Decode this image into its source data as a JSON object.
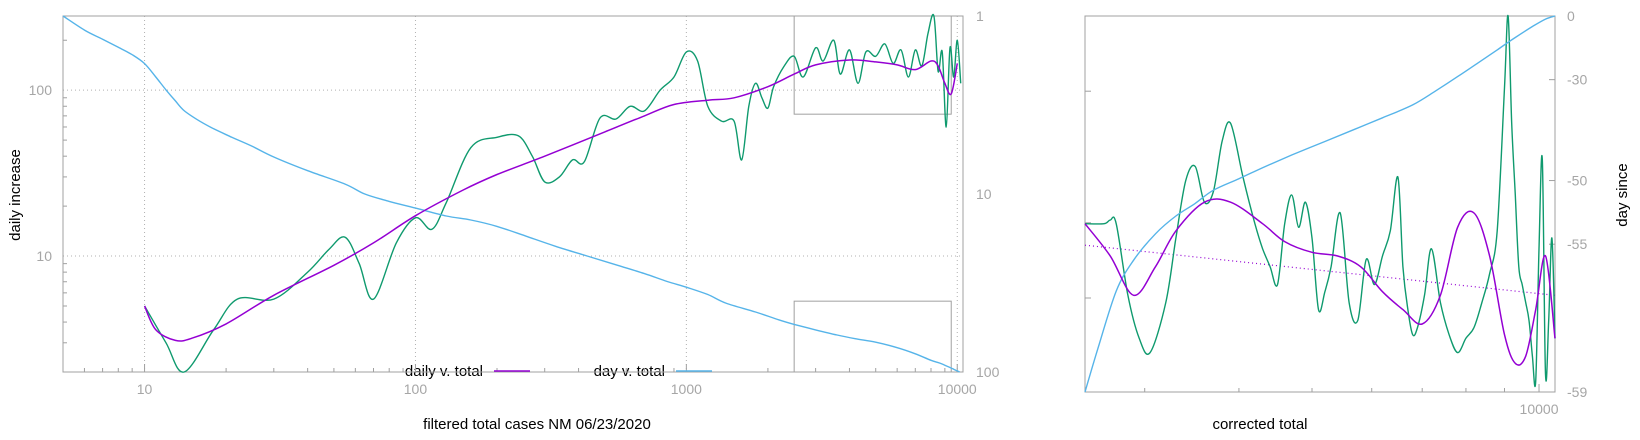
{
  "colors": {
    "daily_raw": "#0f9a6e",
    "daily_smooth": "#9400d3",
    "day_line": "#56b4e9",
    "grid": "#b0b0b0",
    "frame": "#a0a0a0",
    "tick_text": "#a6a6a6"
  },
  "chart_data": [
    {
      "type": "line",
      "xlabel": "filtered total cases NM 06/23/2020",
      "ylabel": "daily increase",
      "y2label": "",
      "x_scale": "log",
      "y_scale": "log",
      "xlim": [
        5,
        10500
      ],
      "ylim": [
        2,
        280
      ],
      "y2lim": [
        1,
        100
      ],
      "y2_scale": "log",
      "y2_reversed": true,
      "grid": true,
      "legend_position": "bottom-center",
      "x_ticks": [
        "10",
        "100",
        "1000",
        "10000"
      ],
      "y_ticks": [
        "10",
        "100"
      ],
      "y2_ticks": [
        "1",
        "10",
        "100"
      ],
      "series": [
        {
          "name": "daily v. total",
          "style": "smooth",
          "x": [
            10,
            11,
            13,
            15,
            20,
            30,
            50,
            70,
            100,
            150,
            200,
            300,
            500,
            700,
            900,
            1200,
            1500,
            2000,
            2500,
            3000,
            4000,
            5000,
            6000,
            7000,
            8000,
            8500,
            9000,
            9500,
            10000
          ],
          "y": [
            5.0,
            3.6,
            3.1,
            3.2,
            3.9,
            5.8,
            8.8,
            12.0,
            17.5,
            25.0,
            31.0,
            40.0,
            56.0,
            70.0,
            82.0,
            87.0,
            90.0,
            105.0,
            125.0,
            142.0,
            152.0,
            148.0,
            142.0,
            133.0,
            150.0,
            140.0,
            110.0,
            95.0,
            145.0
          ]
        },
        {
          "name": "",
          "style": "raw",
          "x": [
            10,
            12,
            14,
            18,
            22,
            30,
            40,
            48,
            55,
            62,
            70,
            85,
            100,
            115,
            130,
            160,
            200,
            240,
            270,
            300,
            340,
            380,
            420,
            480,
            550,
            620,
            700,
            800,
            900,
            1000,
            1100,
            1200,
            1350,
            1500,
            1600,
            1700,
            1800,
            1900,
            2000,
            2100,
            2300,
            2500,
            2700,
            3000,
            3200,
            3500,
            3700,
            4000,
            4300,
            4600,
            5000,
            5400,
            5800,
            6200,
            6600,
            7000,
            7400,
            7800,
            8200,
            8500,
            8800,
            9100,
            9400,
            9700,
            10000,
            10300
          ],
          "y": [
            5.0,
            3.0,
            2.0,
            3.6,
            5.5,
            5.5,
            8.0,
            11.0,
            13.0,
            9.0,
            5.5,
            12.0,
            17.0,
            14.5,
            21.0,
            45.0,
            52.0,
            53.0,
            40.0,
            28.0,
            30.0,
            38.0,
            37.0,
            68.0,
            67.0,
            80.0,
            75.0,
            100.0,
            120.0,
            170.0,
            150.0,
            80.0,
            65.0,
            65.0,
            38.0,
            80.0,
            110.0,
            90.0,
            78.0,
            105.0,
            140.0,
            160.0,
            120.0,
            180.0,
            150.0,
            200.0,
            125.0,
            175.0,
            110.0,
            170.0,
            160.0,
            190.0,
            145.0,
            175.0,
            120.0,
            175.0,
            140.0,
            220.0,
            280.0,
            130.0,
            170.0,
            60.0,
            180.0,
            120.0,
            200.0,
            110.0
          ]
        },
        {
          "name": "day v. total",
          "axis": "y2",
          "x": [
            5,
            6,
            7,
            8,
            9,
            10,
            11,
            12,
            13,
            14,
            16,
            18,
            21,
            25,
            30,
            40,
            55,
            65,
            80,
            100,
            130,
            160,
            200,
            260,
            330,
            430,
            550,
            700,
            850,
            1000,
            1200,
            1400,
            1800,
            2200,
            2500,
            3000,
            3600,
            4200,
            5000,
            6000,
            7000,
            8000,
            8600,
            9200,
            9700,
            10200
          ],
          "y": [
            1,
            1.2,
            1.35,
            1.5,
            1.65,
            1.85,
            2.2,
            2.6,
            3.0,
            3.4,
            3.9,
            4.3,
            4.8,
            5.4,
            6.2,
            7.4,
            8.8,
            10.0,
            11.0,
            12.0,
            13.3,
            14.0,
            15.2,
            17.4,
            19.7,
            22.3,
            25.0,
            28.0,
            31.0,
            33.4,
            36.7,
            41.0,
            46.0,
            51.0,
            54.0,
            58.0,
            62.0,
            65.0,
            68.0,
            73.0,
            79.0,
            86.0,
            89.0,
            93.0,
            96.5,
            100.0
          ]
        }
      ]
    },
    {
      "type": "line",
      "xlabel": "corrected total",
      "ylabel": "day since",
      "x_scale": "log",
      "xlim": [
        2500,
        10500
      ],
      "y2lim": [
        -59,
        0
      ],
      "y2_scale": "log-reversed",
      "grid": false,
      "x_ticks": [
        "10000"
      ],
      "y2_ticks": [
        "0",
        "-30",
        "-50",
        "-55",
        "-59"
      ],
      "series": [
        {
          "name": "daily v. total",
          "style": "smooth",
          "x": [
            2500,
            2700,
            2900,
            3100,
            3300,
            3600,
            3900,
            4300,
            4600,
            5000,
            5400,
            5800,
            6200,
            6600,
            7000,
            7400,
            7800,
            8200,
            8600,
            9000,
            9300,
            9600,
            9900,
            10200,
            10500
          ],
          "y": [
            132,
            123,
            112,
            120,
            130,
            138,
            138,
            132,
            127,
            124,
            123,
            120,
            113,
            108,
            104,
            112,
            131,
            135,
            123,
            101,
            93,
            95,
            108,
            123,
            100
          ]
        },
        {
          "name": "",
          "style": "raw",
          "x": [
            2500,
            2650,
            2700,
            2750,
            2850,
            2950,
            3050,
            3200,
            3300,
            3400,
            3500,
            3600,
            3700,
            3800,
            3900,
            4050,
            4200,
            4300,
            4400,
            4500,
            4600,
            4700,
            4800,
            4900,
            5000,
            5100,
            5200,
            5300,
            5450,
            5600,
            5750,
            5900,
            6050,
            6200,
            6350,
            6500,
            6600,
            6700,
            6800,
            6900,
            7050,
            7200,
            7400,
            7600,
            7800,
            8000,
            8200,
            8400,
            8600,
            8800,
            9000,
            9100,
            9200,
            9300,
            9400,
            9500,
            9600,
            9700,
            9800,
            9900,
            10000,
            10100,
            10200,
            10300,
            10400,
            10500
          ],
          "y": [
            132,
            132,
            133,
            132,
            112,
            100,
            96,
            110,
            128,
            144,
            148,
            138,
            141,
            155,
            160,
            145,
            132,
            125,
            120,
            115,
            132,
            140,
            131,
            138,
            128,
            108,
            113,
            120,
            135,
            110,
            105,
            122,
            115,
            123,
            130,
            145,
            120,
            108,
            101,
            103,
            112,
            125,
            110,
            101,
            96,
            100,
            103,
            110,
            118,
            130,
            170,
            190,
            160,
            140,
            120,
            115,
            110,
            105,
            95,
            88,
            125,
            150,
            90,
            105,
            128,
            100
          ]
        },
        {
          "name": "day v. total",
          "axis": "y2",
          "x": [
            2500,
            2600,
            2750,
            2900,
            3100,
            3300,
            3500,
            3700,
            4000,
            4300,
            4700,
            5200,
            5700,
            6200,
            6800,
            7300,
            7800,
            8300,
            8800,
            9300,
            9800,
            10200,
            10500
          ],
          "y": [
            -59,
            -58.4,
            -57.0,
            -55.8,
            -54.4,
            -53.2,
            -52.2,
            -51.0,
            -49.8,
            -48.5,
            -46.8,
            -44.7,
            -42.5,
            -40.2,
            -37.2,
            -33.4,
            -29.0,
            -24.0,
            -18.5,
            -12.5,
            -6.5,
            -2.0,
            0
          ]
        },
        {
          "name": "",
          "style": "dotted-fit",
          "x": [
            2500,
            10500
          ],
          "y": [
            126,
            112
          ]
        }
      ]
    }
  ]
}
